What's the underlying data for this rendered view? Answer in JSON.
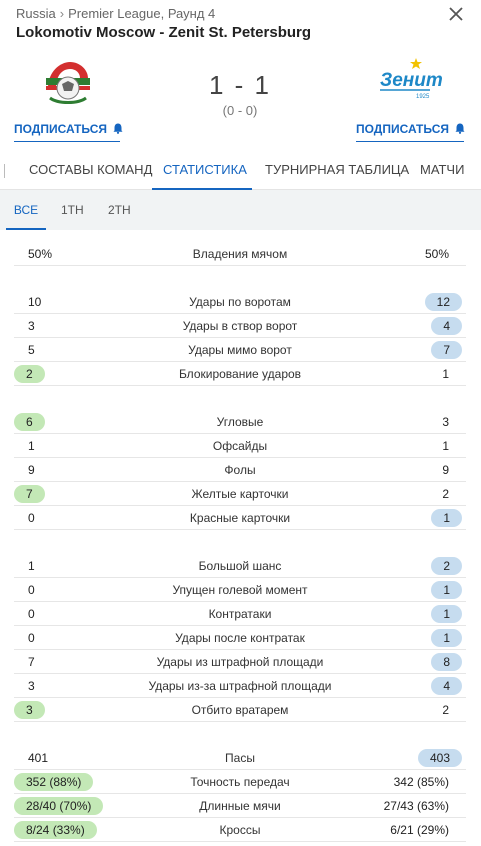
{
  "breadcrumb": {
    "country": "Russia",
    "separator": "›",
    "league": "Premier League, Раунд 4"
  },
  "match": {
    "title": "Lokomotiv Moscow - Zenit St. Petersburg",
    "score": "1 - 1",
    "halftime": "(0 - 0)",
    "home_team": "Lokomotiv Moscow",
    "away_team": "Zenit St. Petersburg",
    "away_logo_text": "Зенит",
    "away_logo_year": "1925"
  },
  "subscribe": {
    "home_label": "ПОДПИСАТЬСЯ",
    "away_label": "ПОДПИСАТЬСЯ"
  },
  "tabs": [
    "СОСТАВЫ КОМАНД",
    "СТАТИСТИКА",
    "ТУРНИРНАЯ ТАБЛИЦА",
    "МАТЧИ"
  ],
  "active_tab": "СТАТИСТИКА",
  "periods": [
    "ВСЕ",
    "1TH",
    "2TH"
  ],
  "active_period": "ВСЕ",
  "colors": {
    "accent": "#1565c0",
    "home_highlight": "#c3e8b6",
    "away_highlight": "#c6dcef",
    "lokomotiv_red": "#d32f2f",
    "lokomotiv_green": "#2e7d32",
    "zenit_blue": "#1e88c7"
  },
  "stats": [
    {
      "name": "Владения мячом",
      "home": "50%",
      "away": "50%",
      "leader": "none"
    },
    {
      "name": "Удары по воротам",
      "home": "10",
      "away": "12",
      "leader": "away"
    },
    {
      "name": "Удары в створ ворот",
      "home": "3",
      "away": "4",
      "leader": "away"
    },
    {
      "name": "Удары мимо ворот",
      "home": "5",
      "away": "7",
      "leader": "away"
    },
    {
      "name": "Блокирование ударов",
      "home": "2",
      "away": "1",
      "leader": "home"
    },
    {
      "name": "Угловые",
      "home": "6",
      "away": "3",
      "leader": "home"
    },
    {
      "name": "Офсайды",
      "home": "1",
      "away": "1",
      "leader": "none"
    },
    {
      "name": "Фолы",
      "home": "9",
      "away": "9",
      "leader": "none"
    },
    {
      "name": "Желтые карточки",
      "home": "7",
      "away": "2",
      "leader": "home"
    },
    {
      "name": "Красные карточки",
      "home": "0",
      "away": "1",
      "leader": "away"
    },
    {
      "name": "Большой шанс",
      "home": "1",
      "away": "2",
      "leader": "away"
    },
    {
      "name": "Упущен голевой момент",
      "home": "0",
      "away": "1",
      "leader": "away"
    },
    {
      "name": "Контратаки",
      "home": "0",
      "away": "1",
      "leader": "away"
    },
    {
      "name": "Удары после контратак",
      "home": "0",
      "away": "1",
      "leader": "away"
    },
    {
      "name": "Удары из штрафной площади",
      "home": "7",
      "away": "8",
      "leader": "away"
    },
    {
      "name": "Удары из-за штрафной площади",
      "home": "3",
      "away": "4",
      "leader": "away"
    },
    {
      "name": "Отбито вратарем",
      "home": "3",
      "away": "2",
      "leader": "home"
    },
    {
      "name": "Пасы",
      "home": "401",
      "away": "403",
      "leader": "away"
    },
    {
      "name": "Точность передач",
      "home": "352 (88%)",
      "away": "342 (85%)",
      "leader": "home"
    },
    {
      "name": "Длинные мячи",
      "home": "28/40 (70%)",
      "away": "27/43 (63%)",
      "leader": "home"
    },
    {
      "name": "Кроссы",
      "home": "8/24 (33%)",
      "away": "6/21 (29%)",
      "leader": "home"
    }
  ]
}
